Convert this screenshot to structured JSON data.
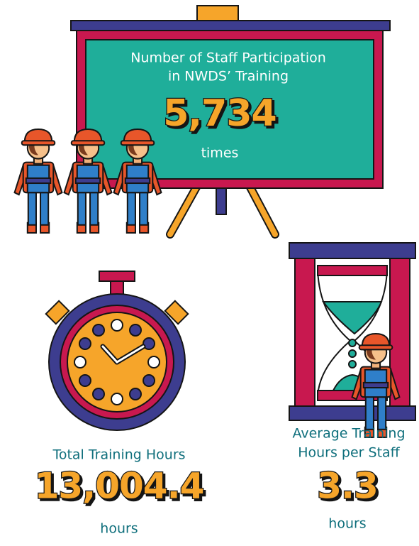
{
  "participation": {
    "title_lines": [
      "Number of Staff Participation",
      "in NWDS’ Training"
    ],
    "value": "5,734",
    "unit": "times"
  },
  "total_hours": {
    "label": "Total Training Hours",
    "value": "13,004.4",
    "unit": "hours"
  },
  "average_hours": {
    "label_lines": [
      "Average Training",
      "Hours per Staff"
    ],
    "value": "3.3",
    "unit": "hours"
  }
}
